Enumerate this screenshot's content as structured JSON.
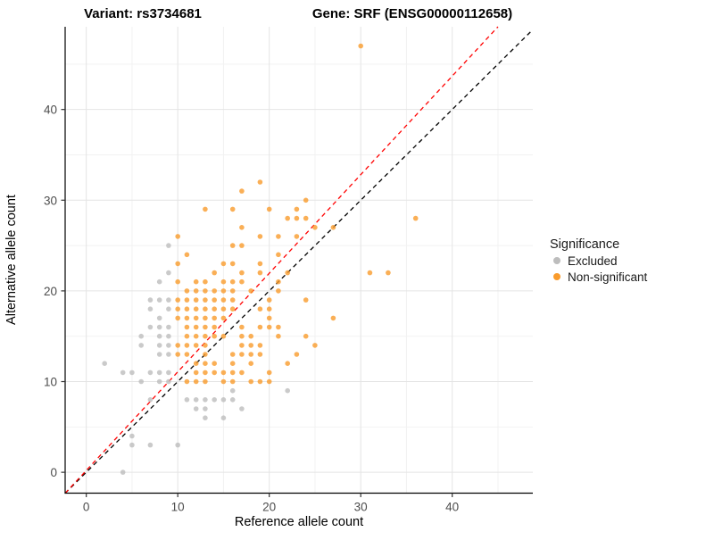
{
  "titles": {
    "left": "Variant: rs3734681",
    "right": "Gene: SRF (ENSG00000112658)"
  },
  "axes": {
    "x_label": "Reference allele count",
    "y_label": "Alternative allele count",
    "x_ticks": [
      0,
      10,
      20,
      30,
      40
    ],
    "y_ticks": [
      0,
      10,
      20,
      30,
      40
    ],
    "x_minor": [
      5,
      15,
      25,
      35,
      45
    ],
    "y_minor": [
      5,
      15,
      25,
      35,
      45
    ]
  },
  "legend": {
    "title": "Significance",
    "items": [
      {
        "label": "Excluded",
        "color": "#bdbdbd"
      },
      {
        "label": "Non-significant",
        "color": "#f99b2c"
      }
    ]
  },
  "colors": {
    "excluded": "#bdbdbd",
    "non_significant": "#f99b2c",
    "identity_line": "#000000",
    "fit_line": "#ff0000",
    "grid_major": "#e4e4e4",
    "grid_minor": "#f2f2f2",
    "axis_line": "#000000"
  },
  "chart_data": {
    "type": "scatter",
    "title": "Variant: rs3734681 / Gene: SRF (ENSG00000112658)",
    "xlabel": "Reference allele count",
    "ylabel": "Alternative allele count",
    "xlim": [
      -2.31,
      48.81
    ],
    "ylim": [
      -2.3,
      49.12
    ],
    "grid": true,
    "legend_position": "right",
    "point_radius": 2.8,
    "series": [
      {
        "name": "Excluded",
        "color": "#bdbdbd",
        "points": [
          [
            4,
            0
          ],
          [
            5,
            3
          ],
          [
            7,
            3
          ],
          [
            10,
            3
          ],
          [
            5,
            4
          ],
          [
            13,
            6
          ],
          [
            15,
            6
          ],
          [
            12,
            7
          ],
          [
            13,
            7
          ],
          [
            17,
            7
          ],
          [
            7,
            8
          ],
          [
            11,
            8
          ],
          [
            12,
            8
          ],
          [
            13,
            8
          ],
          [
            14,
            8
          ],
          [
            15,
            8
          ],
          [
            16,
            8
          ],
          [
            16,
            9
          ],
          [
            22,
            9
          ],
          [
            6,
            10
          ],
          [
            8,
            10
          ],
          [
            9,
            10
          ],
          [
            4,
            11
          ],
          [
            5,
            11
          ],
          [
            7,
            11
          ],
          [
            8,
            11
          ],
          [
            9,
            11
          ],
          [
            2,
            12
          ],
          [
            8,
            13
          ],
          [
            9,
            13
          ],
          [
            6,
            14
          ],
          [
            8,
            14
          ],
          [
            9,
            14
          ],
          [
            6,
            15
          ],
          [
            8,
            15
          ],
          [
            9,
            15
          ],
          [
            7,
            16
          ],
          [
            8,
            16
          ],
          [
            9,
            16
          ],
          [
            8,
            17
          ],
          [
            7,
            18
          ],
          [
            9,
            18
          ],
          [
            7,
            19
          ],
          [
            8,
            19
          ],
          [
            9,
            19
          ],
          [
            8,
            21
          ],
          [
            9,
            22
          ],
          [
            9,
            25
          ]
        ]
      },
      {
        "name": "Non-significant",
        "color": "#f99b2c",
        "points": [
          [
            11,
            10
          ],
          [
            12,
            10
          ],
          [
            13,
            10
          ],
          [
            15,
            10
          ],
          [
            16,
            10
          ],
          [
            18,
            10
          ],
          [
            19,
            10
          ],
          [
            20,
            10
          ],
          [
            12,
            11
          ],
          [
            13,
            11
          ],
          [
            14,
            11
          ],
          [
            15,
            11
          ],
          [
            16,
            11
          ],
          [
            17,
            11
          ],
          [
            20,
            11
          ],
          [
            12,
            12
          ],
          [
            13,
            12
          ],
          [
            14,
            12
          ],
          [
            16,
            12
          ],
          [
            18,
            12
          ],
          [
            22,
            12
          ],
          [
            10,
            13
          ],
          [
            11,
            13
          ],
          [
            13,
            13
          ],
          [
            16,
            13
          ],
          [
            17,
            13
          ],
          [
            18,
            13
          ],
          [
            19,
            13
          ],
          [
            23,
            13
          ],
          [
            10,
            14
          ],
          [
            11,
            14
          ],
          [
            12,
            14
          ],
          [
            13,
            14
          ],
          [
            17,
            14
          ],
          [
            18,
            14
          ],
          [
            19,
            14
          ],
          [
            25,
            14
          ],
          [
            11,
            15
          ],
          [
            12,
            15
          ],
          [
            13,
            15
          ],
          [
            14,
            15
          ],
          [
            15,
            15
          ],
          [
            17,
            15
          ],
          [
            18,
            15
          ],
          [
            21,
            15
          ],
          [
            24,
            15
          ],
          [
            11,
            16
          ],
          [
            12,
            16
          ],
          [
            13,
            16
          ],
          [
            14,
            16
          ],
          [
            17,
            16
          ],
          [
            19,
            16
          ],
          [
            20,
            16
          ],
          [
            21,
            16
          ],
          [
            10,
            17
          ],
          [
            11,
            17
          ],
          [
            12,
            17
          ],
          [
            13,
            17
          ],
          [
            14,
            17
          ],
          [
            15,
            17
          ],
          [
            20,
            17
          ],
          [
            27,
            17
          ],
          [
            10,
            18
          ],
          [
            11,
            18
          ],
          [
            12,
            18
          ],
          [
            13,
            18
          ],
          [
            14,
            18
          ],
          [
            15,
            18
          ],
          [
            16,
            18
          ],
          [
            19,
            18
          ],
          [
            20,
            18
          ],
          [
            10,
            19
          ],
          [
            11,
            19
          ],
          [
            12,
            19
          ],
          [
            13,
            19
          ],
          [
            14,
            19
          ],
          [
            15,
            19
          ],
          [
            16,
            19
          ],
          [
            20,
            19
          ],
          [
            24,
            19
          ],
          [
            11,
            20
          ],
          [
            12,
            20
          ],
          [
            13,
            20
          ],
          [
            14,
            20
          ],
          [
            15,
            20
          ],
          [
            16,
            20
          ],
          [
            18,
            20
          ],
          [
            21,
            20
          ],
          [
            10,
            21
          ],
          [
            12,
            21
          ],
          [
            13,
            21
          ],
          [
            15,
            21
          ],
          [
            16,
            21
          ],
          [
            17,
            21
          ],
          [
            21,
            21
          ],
          [
            14,
            22
          ],
          [
            17,
            22
          ],
          [
            19,
            22
          ],
          [
            22,
            22
          ],
          [
            31,
            22
          ],
          [
            33,
            22
          ],
          [
            10,
            23
          ],
          [
            15,
            23
          ],
          [
            16,
            23
          ],
          [
            19,
            23
          ],
          [
            11,
            24
          ],
          [
            21,
            24
          ],
          [
            16,
            25
          ],
          [
            17,
            25
          ],
          [
            10,
            26
          ],
          [
            19,
            26
          ],
          [
            21,
            26
          ],
          [
            23,
            26
          ],
          [
            17,
            27
          ],
          [
            25,
            27
          ],
          [
            27,
            27
          ],
          [
            22,
            28
          ],
          [
            23,
            28
          ],
          [
            24,
            28
          ],
          [
            36,
            28
          ],
          [
            13,
            29
          ],
          [
            16,
            29
          ],
          [
            20,
            29
          ],
          [
            23,
            29
          ],
          [
            24,
            30
          ],
          [
            17,
            31
          ],
          [
            19,
            32
          ],
          [
            30,
            47
          ]
        ]
      }
    ],
    "lines": [
      {
        "name": "identity",
        "color": "#000000",
        "dash": "5,4",
        "width": 1.3,
        "x1": -2.31,
        "y1": -2.31,
        "x2": 48.81,
        "y2": 48.81
      },
      {
        "name": "fit",
        "color": "#ff0000",
        "dash": "5,4",
        "width": 1.3,
        "x1": -2.31,
        "y1": -2.31,
        "x2": 45.0,
        "y2": 49.12
      }
    ]
  },
  "layout_note": ""
}
